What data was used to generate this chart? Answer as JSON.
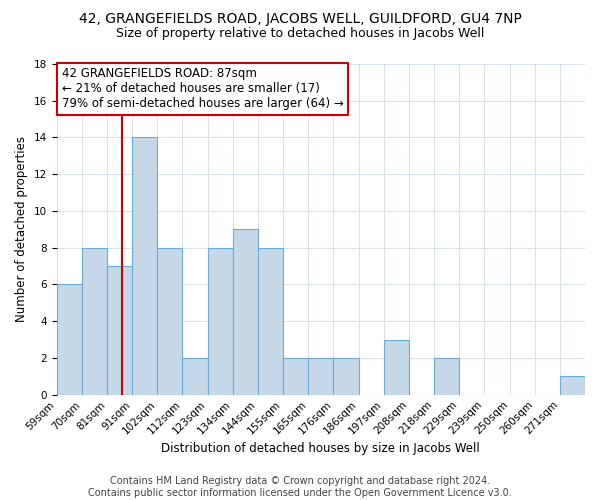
{
  "title": "42, GRANGEFIELDS ROAD, JACOBS WELL, GUILDFORD, GU4 7NP",
  "subtitle": "Size of property relative to detached houses in Jacobs Well",
  "xlabel": "Distribution of detached houses by size in Jacobs Well",
  "ylabel": "Number of detached properties",
  "bin_labels": [
    "59sqm",
    "70sqm",
    "81sqm",
    "91sqm",
    "102sqm",
    "112sqm",
    "123sqm",
    "134sqm",
    "144sqm",
    "155sqm",
    "165sqm",
    "176sqm",
    "186sqm",
    "197sqm",
    "208sqm",
    "218sqm",
    "229sqm",
    "239sqm",
    "250sqm",
    "260sqm",
    "271sqm"
  ],
  "bar_heights": [
    6,
    8,
    7,
    14,
    8,
    2,
    8,
    9,
    8,
    2,
    2,
    2,
    0,
    3,
    0,
    2,
    0,
    0,
    0,
    0,
    1
  ],
  "bar_color": "#c5d8e8",
  "bar_edge_color": "#6aaad4",
  "property_size_idx": 2.6,
  "red_line_color": "#cc0000",
  "annotation_text": "42 GRANGEFIELDS ROAD: 87sqm\n← 21% of detached houses are smaller (17)\n79% of semi-detached houses are larger (64) →",
  "annotation_box_color": "#cc0000",
  "ylim": [
    0,
    18
  ],
  "yticks": [
    0,
    2,
    4,
    6,
    8,
    10,
    12,
    14,
    16,
    18
  ],
  "footnote": "Contains HM Land Registry data © Crown copyright and database right 2024.\nContains public sector information licensed under the Open Government Licence v3.0.",
  "background_color": "#ffffff",
  "grid_color": "#d0dce8",
  "title_fontsize": 10,
  "subtitle_fontsize": 9,
  "label_fontsize": 8.5,
  "tick_fontsize": 7.5,
  "annotation_fontsize": 8.5,
  "footnote_fontsize": 7
}
